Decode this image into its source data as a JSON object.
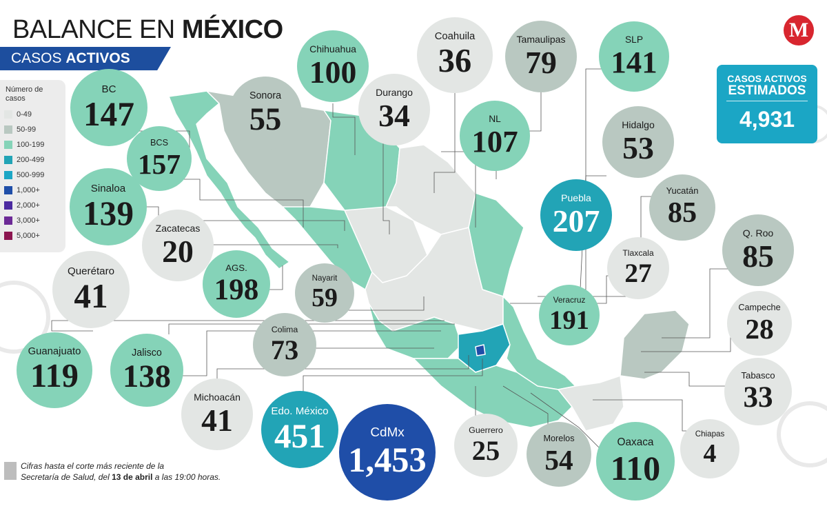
{
  "header": {
    "title_regular": "BALANCE EN ",
    "title_bold": "MÉXICO",
    "subtitle_regular": "CASOS ",
    "subtitle_bold": "ACTIVOS"
  },
  "logo": {
    "letter": "M",
    "color": "#d8262f"
  },
  "legend": {
    "title": "Número de casos",
    "items": [
      {
        "label": "0-49",
        "color": "#e3e6e4"
      },
      {
        "label": "50-99",
        "color": "#b9c8c1"
      },
      {
        "label": "100-199",
        "color": "#85d3b8"
      },
      {
        "label": "200-499",
        "color": "#22a4b6"
      },
      {
        "label": "500-999",
        "color": "#1ba6c5"
      },
      {
        "label": "1,000+",
        "color": "#1f4ea8"
      },
      {
        "label": "2,000+",
        "color": "#4b2aa0"
      },
      {
        "label": "3,000+",
        "color": "#6c2a96"
      },
      {
        "label": "5,000+",
        "color": "#8c1650"
      }
    ]
  },
  "total": {
    "line1": "CASOS ACTIVOS",
    "line2": "ESTIMADOS",
    "value": "4,931",
    "color": "#1ba6c5"
  },
  "states": [
    {
      "name": "Chihuahua",
      "value": "100",
      "color": "#85d3b8"
    },
    {
      "name": "Coahuila",
      "value": "36",
      "color": "#e3e6e4"
    },
    {
      "name": "Tamaulipas",
      "value": "79",
      "color": "#b9c8c1"
    },
    {
      "name": "SLP",
      "value": "141",
      "color": "#85d3b8"
    },
    {
      "name": "BC",
      "value": "147",
      "color": "#85d3b8"
    },
    {
      "name": "Sonora",
      "value": "55",
      "color": "#b9c8c1"
    },
    {
      "name": "Durango",
      "value": "34",
      "color": "#e3e6e4"
    },
    {
      "name": "NL",
      "value": "107",
      "color": "#85d3b8"
    },
    {
      "name": "Hidalgo",
      "value": "53",
      "color": "#b9c8c1"
    },
    {
      "name": "BCS",
      "value": "157",
      "color": "#85d3b8"
    },
    {
      "name": "Sinaloa",
      "value": "139",
      "color": "#85d3b8"
    },
    {
      "name": "Zacatecas",
      "value": "20",
      "color": "#e3e6e4"
    },
    {
      "name": "Puebla",
      "value": "207",
      "color": "#22a4b6"
    },
    {
      "name": "Yucatán",
      "value": "85",
      "color": "#b9c8c1"
    },
    {
      "name": "Q. Roo",
      "value": "85",
      "color": "#b9c8c1"
    },
    {
      "name": "Querétaro",
      "value": "41",
      "color": "#e3e6e4"
    },
    {
      "name": "AGS.",
      "value": "198",
      "color": "#85d3b8"
    },
    {
      "name": "Nayarit",
      "value": "59",
      "color": "#b9c8c1"
    },
    {
      "name": "Tlaxcala",
      "value": "27",
      "color": "#e3e6e4"
    },
    {
      "name": "Veracruz",
      "value": "191",
      "color": "#85d3b8"
    },
    {
      "name": "Campeche",
      "value": "28",
      "color": "#e3e6e4"
    },
    {
      "name": "Guanajuato",
      "value": "119",
      "color": "#85d3b8"
    },
    {
      "name": "Jalisco",
      "value": "138",
      "color": "#85d3b8"
    },
    {
      "name": "Colima",
      "value": "73",
      "color": "#b9c8c1"
    },
    {
      "name": "Tabasco",
      "value": "33",
      "color": "#e3e6e4"
    },
    {
      "name": "Michoacán",
      "value": "41",
      "color": "#e3e6e4"
    },
    {
      "name": "Edo. México",
      "value": "451",
      "color": "#22a4b6"
    },
    {
      "name": "CdMx",
      "value": "1,453",
      "color": "#1f4ea8"
    },
    {
      "name": "Guerrero",
      "value": "25",
      "color": "#e3e6e4"
    },
    {
      "name": "Morelos",
      "value": "54",
      "color": "#b9c8c1"
    },
    {
      "name": "Oaxaca",
      "value": "110",
      "color": "#85d3b8"
    },
    {
      "name": "Chiapas",
      "value": "4",
      "color": "#e3e6e4"
    }
  ],
  "footnote": {
    "line1": "Cifras hasta el corte más reciente de la",
    "line2_pre": "Secretaría de Salud, del ",
    "line2_bold": "13 de abril",
    "line2_post": " a las 19:00 horas."
  }
}
